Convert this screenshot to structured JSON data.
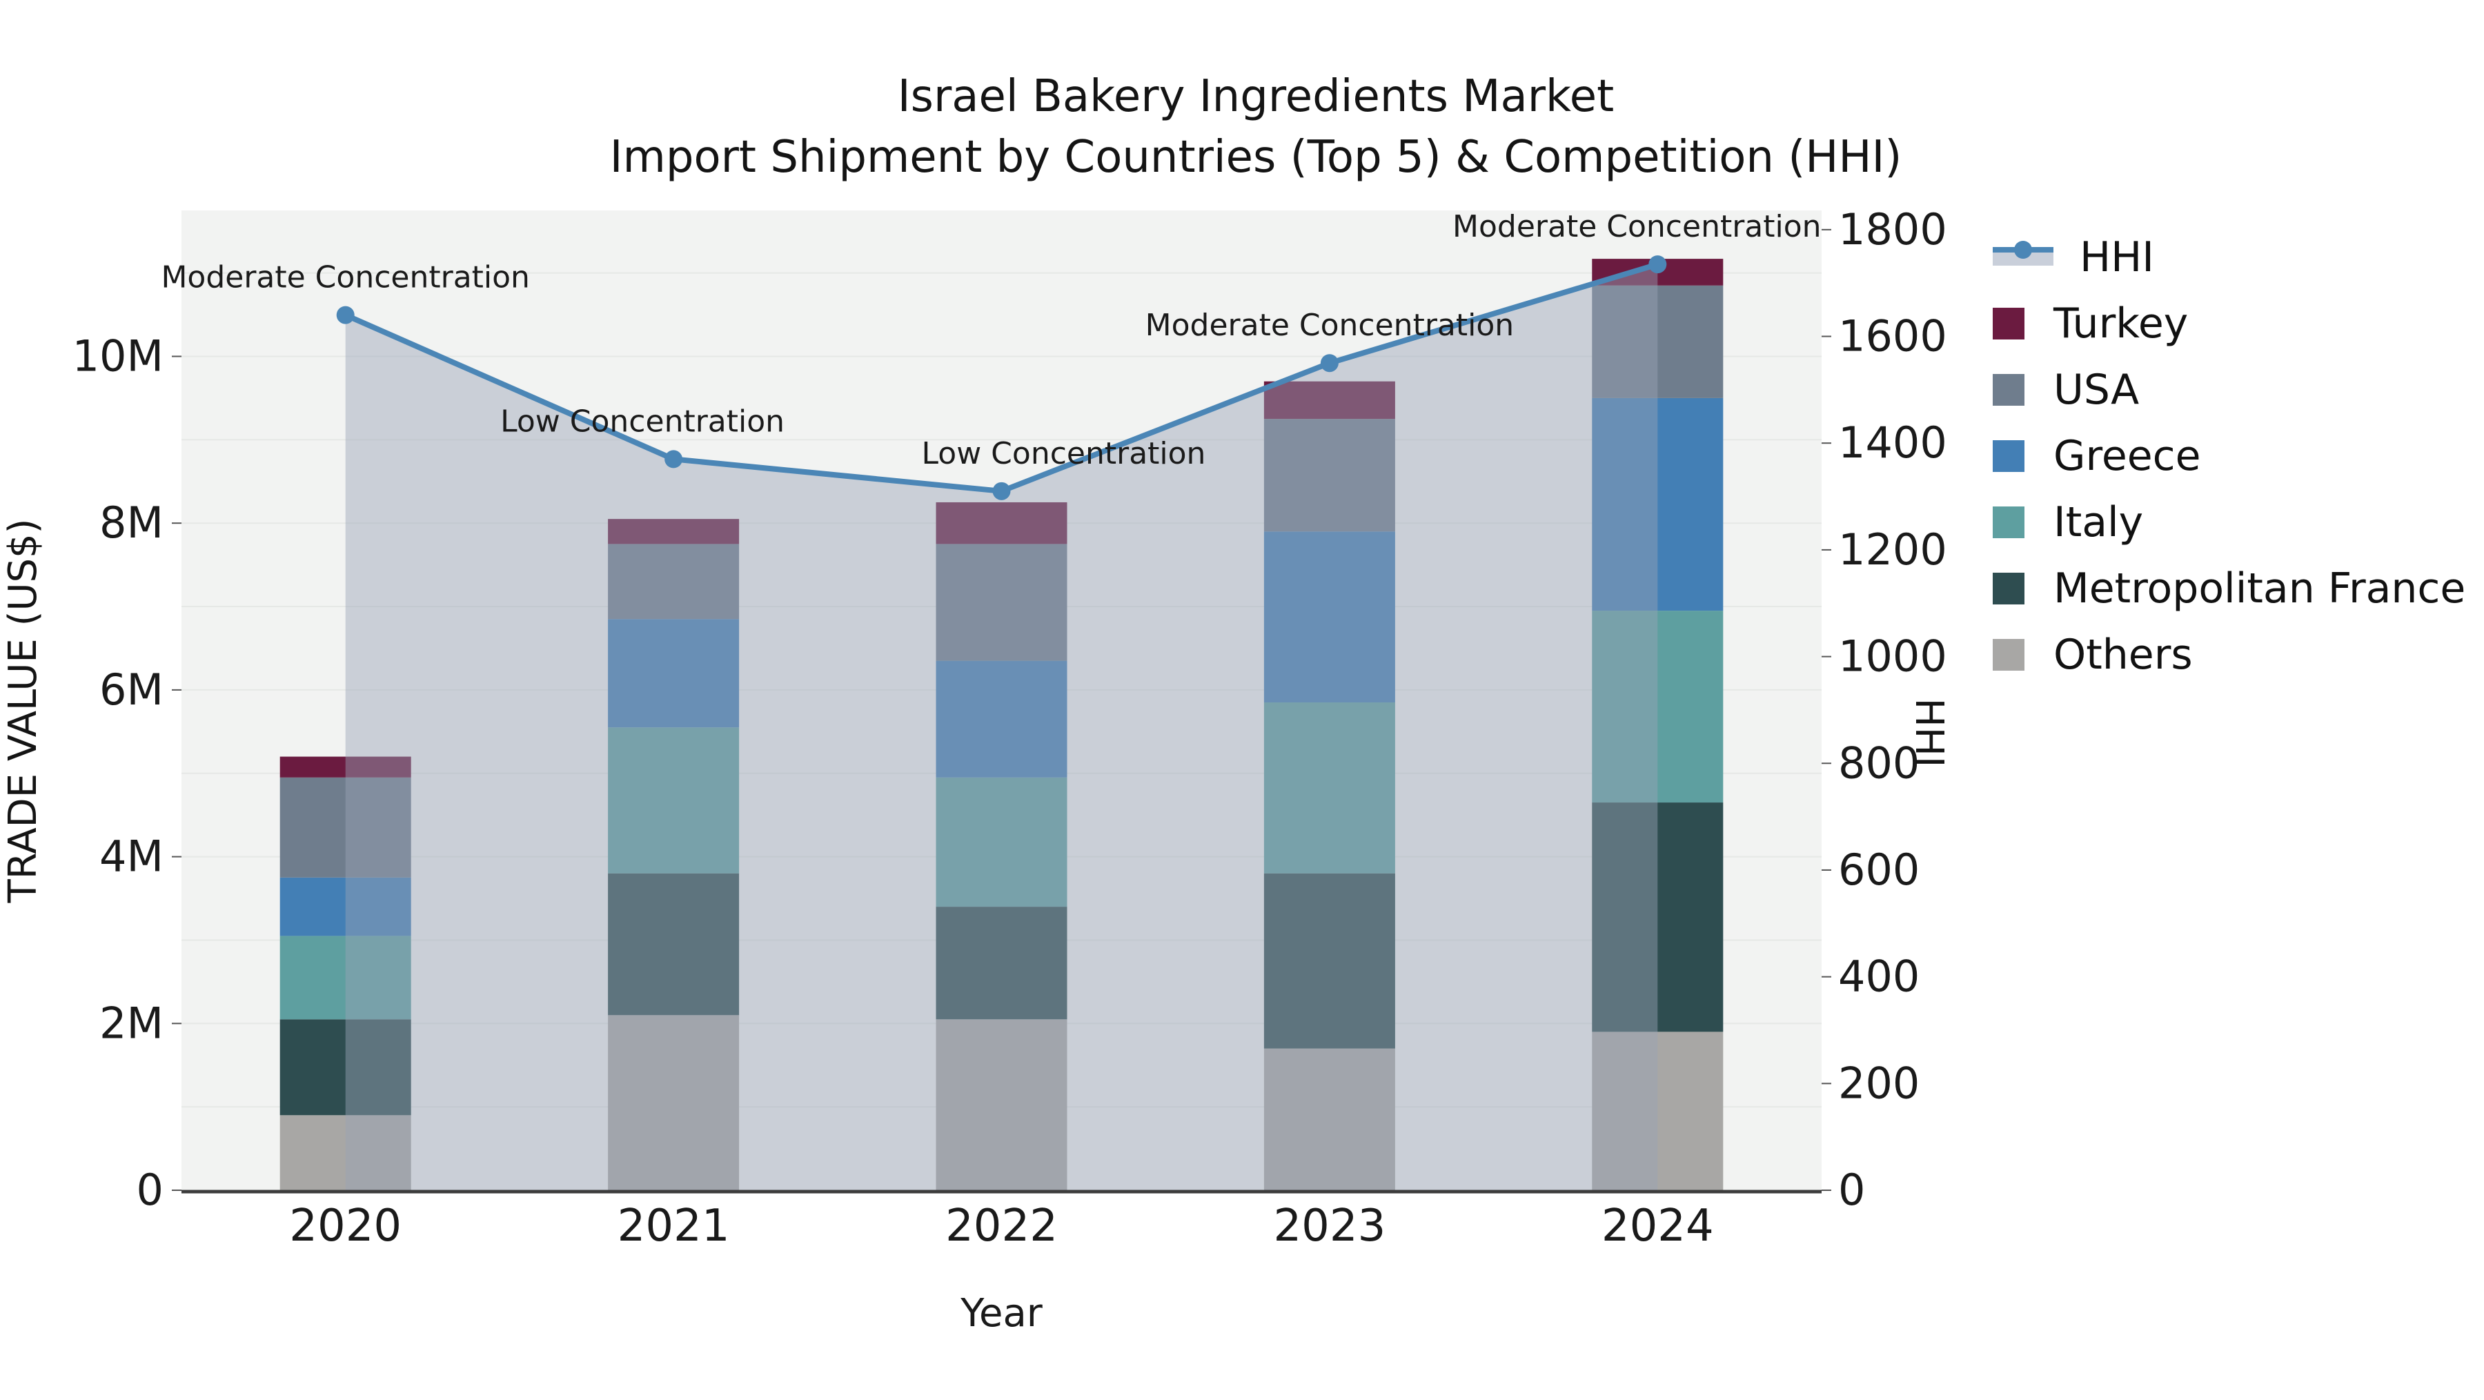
{
  "title": {
    "line1": "Israel Bakery Ingredients Market",
    "line2": "Import Shipment by Countries (Top 5) & Competition (HHI)"
  },
  "axes": {
    "x": {
      "label": "Year",
      "tick_labels": [
        "2020",
        "2021",
        "2022",
        "2023",
        "2024"
      ]
    },
    "y_left": {
      "label": "TRADE VALUE (US$)",
      "tick_labels": [
        "0",
        "2M",
        "4M",
        "6M",
        "8M",
        "10M"
      ],
      "tick_values": [
        0,
        2000000,
        4000000,
        6000000,
        8000000,
        10000000
      ]
    },
    "y_right": {
      "label": "HHI",
      "tick_labels": [
        "0",
        "200",
        "400",
        "600",
        "800",
        "1000",
        "1200",
        "1400",
        "1600",
        "1800"
      ],
      "tick_values": [
        0,
        200,
        400,
        600,
        800,
        1000,
        1200,
        1400,
        1600,
        1800
      ]
    }
  },
  "legend": {
    "items": [
      {
        "label": "HHI",
        "swatch": "line-marker-area",
        "color": "#4b86b6"
      },
      {
        "label": "Turkey",
        "swatch": "square",
        "color": "#6b1b40"
      },
      {
        "label": "USA",
        "swatch": "square",
        "color": "#6f7d8d"
      },
      {
        "label": "Greece",
        "swatch": "square",
        "color": "#437fb5"
      },
      {
        "label": "Italy",
        "swatch": "square",
        "color": "#5e9fa0"
      },
      {
        "label": "Metropolitan France",
        "swatch": "square",
        "color": "#2e4d50"
      },
      {
        "label": "Others",
        "swatch": "square",
        "color": "#a8a7a5"
      }
    ]
  },
  "colors": {
    "figure_background": "#ffffff",
    "plot_background": "#f2f3f2",
    "gridline": "#e6e8e6",
    "axis_spine": "#3c3c3c",
    "hhi_line": "#4b86b6",
    "hhi_area_fill": "rgba(152,163,182,0.45)",
    "annotation_text": "#000000"
  },
  "chart_data": {
    "type": "combo: stacked-bar (left axis) + line-area (right axis)",
    "categories": [
      "2020",
      "2021",
      "2022",
      "2023",
      "2024"
    ],
    "bar_unit": "US$ (trade value)",
    "stack_order": "bottom to top",
    "series": [
      {
        "name": "Others",
        "color": "#a8a7a5",
        "values": [
          900000,
          2100000,
          2050000,
          1700000,
          1900000
        ]
      },
      {
        "name": "Metropolitan France",
        "color": "#2e4d50",
        "values": [
          1150000,
          1700000,
          1350000,
          2100000,
          2750000
        ]
      },
      {
        "name": "Italy",
        "color": "#5e9fa0",
        "values": [
          1000000,
          1750000,
          1550000,
          2050000,
          2300000
        ]
      },
      {
        "name": "Greece",
        "color": "#437fb5",
        "values": [
          700000,
          1300000,
          1400000,
          2050000,
          2550000
        ]
      },
      {
        "name": "USA",
        "color": "#6f7d8d",
        "values": [
          1200000,
          900000,
          1400000,
          1350000,
          1350000
        ]
      },
      {
        "name": "Turkey",
        "color": "#6b1b40",
        "values": [
          250000,
          300000,
          500000,
          450000,
          320000
        ]
      }
    ],
    "bar_totals": [
      5200000,
      8050000,
      8250000,
      9700000,
      11170000
    ],
    "line": {
      "name": "HHI",
      "color": "#4b86b6",
      "values": [
        1640,
        1370,
        1310,
        1550,
        1735
      ],
      "annotations": [
        "Moderate Concentration",
        "Low Concentration",
        "Low Concentration",
        "Moderate Concentration",
        "Moderate Concentration"
      ],
      "area_fill": true
    },
    "title": "Israel Bakery Ingredients Market — Import Shipment by Countries (Top 5) & Competition (HHI)",
    "xlabel": "Year",
    "ylabel_left": "TRADE VALUE (US$)",
    "ylabel_right": "HHI",
    "ylim_left": [
      0,
      11750000
    ],
    "ylim_right": [
      0,
      1836
    ],
    "grid": "horizontal, every 1M on left axis",
    "legend_position": "right, outside plot"
  }
}
